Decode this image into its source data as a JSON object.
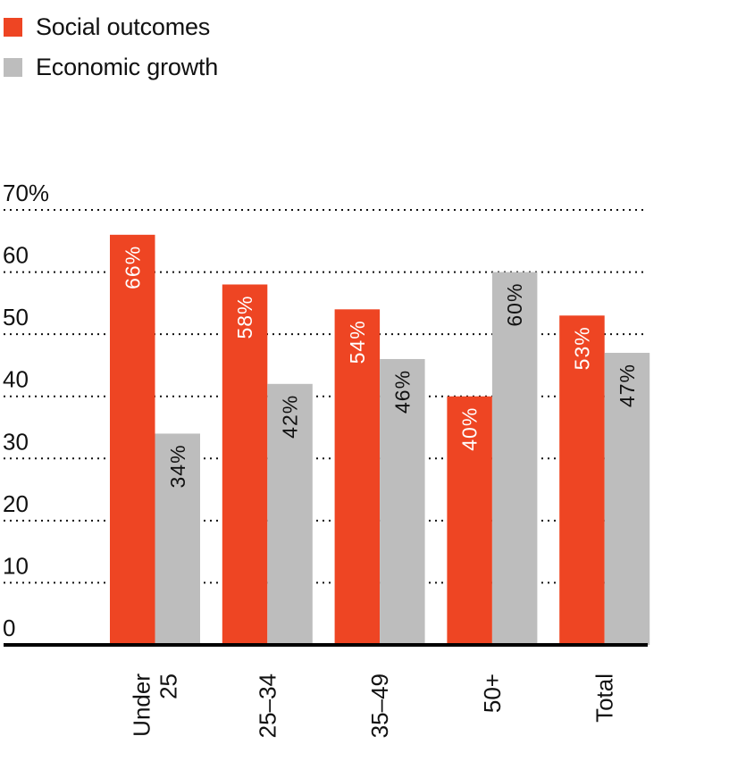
{
  "legend": [
    {
      "label": "Social outcomes",
      "color": "#EE4523"
    },
    {
      "label": "Economic growth",
      "color": "#BDBDBD"
    }
  ],
  "chart_data": {
    "type": "bar",
    "title": "",
    "xlabel": "",
    "ylabel": "",
    "categories": [
      [
        "Under",
        "25"
      ],
      [
        "25–34"
      ],
      [
        "35–49"
      ],
      [
        "50+"
      ],
      [
        "Total"
      ]
    ],
    "series": [
      {
        "name": "Social outcomes",
        "color": "#EE4523",
        "label_color": "#ffffff",
        "values": [
          66,
          58,
          54,
          40,
          53
        ],
        "labels": [
          "66%",
          "58%",
          "54%",
          "40%",
          "53%"
        ]
      },
      {
        "name": "Economic growth",
        "color": "#BDBDBD",
        "label_color": "#111111",
        "values": [
          34,
          42,
          46,
          60,
          47
        ],
        "labels": [
          "34%",
          "42%",
          "46%",
          "60%",
          "47%"
        ]
      }
    ],
    "ylim": [
      0,
      70
    ],
    "yticks": [
      0,
      10,
      20,
      30,
      40,
      50,
      60,
      70
    ],
    "ytick_labels": [
      "0",
      "10",
      "20",
      "30",
      "40",
      "50",
      "60",
      "70%"
    ],
    "grid": "horizontal-dotted",
    "legend_position": "top-left"
  }
}
